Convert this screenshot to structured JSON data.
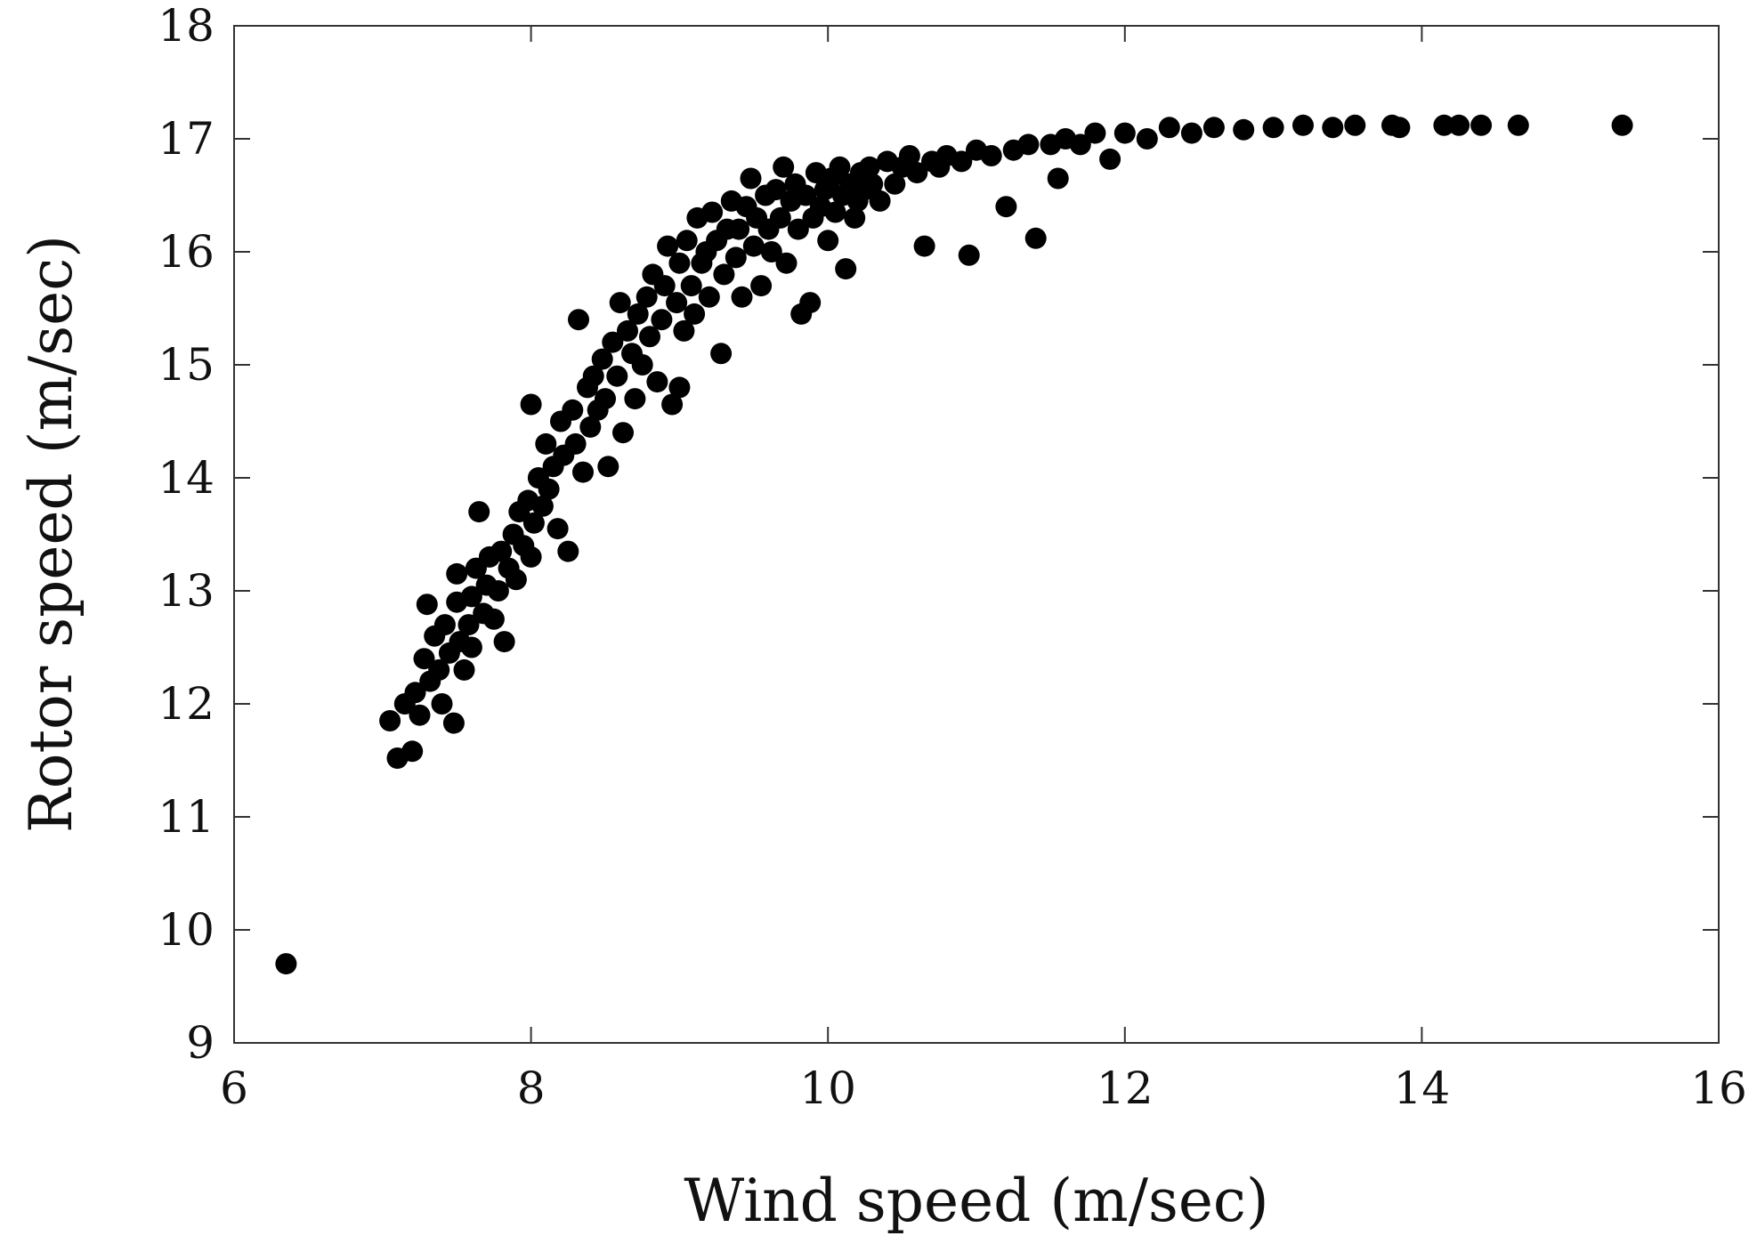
{
  "chart_data": {
    "type": "scatter",
    "title": "",
    "xlabel": "Wind speed (m/sec)",
    "ylabel": "Rotor speed (m/sec)",
    "xlim": [
      6,
      16
    ],
    "ylim": [
      9,
      18
    ],
    "xticks": [
      6,
      8,
      10,
      12,
      14,
      16
    ],
    "yticks": [
      9,
      10,
      11,
      12,
      13,
      14,
      15,
      16,
      17,
      18
    ],
    "grid": false,
    "legend": "none",
    "marker_color": "#000000",
    "series": [
      {
        "points": [
          [
            6.35,
            9.7
          ],
          [
            7.05,
            11.85
          ],
          [
            7.1,
            11.52
          ],
          [
            7.15,
            12.0
          ],
          [
            7.2,
            11.58
          ],
          [
            7.22,
            12.1
          ],
          [
            7.25,
            11.9
          ],
          [
            7.28,
            12.4
          ],
          [
            7.3,
            12.88
          ],
          [
            7.32,
            12.2
          ],
          [
            7.35,
            12.6
          ],
          [
            7.38,
            12.3
          ],
          [
            7.4,
            12.0
          ],
          [
            7.42,
            12.7
          ],
          [
            7.45,
            12.45
          ],
          [
            7.48,
            11.83
          ],
          [
            7.5,
            12.9
          ],
          [
            7.5,
            13.15
          ],
          [
            7.52,
            12.55
          ],
          [
            7.55,
            12.3
          ],
          [
            7.58,
            12.7
          ],
          [
            7.6,
            12.95
          ],
          [
            7.6,
            12.5
          ],
          [
            7.63,
            13.2
          ],
          [
            7.65,
            13.7
          ],
          [
            7.68,
            12.8
          ],
          [
            7.7,
            13.05
          ],
          [
            7.72,
            13.3
          ],
          [
            7.75,
            12.75
          ],
          [
            7.78,
            13.0
          ],
          [
            7.8,
            13.35
          ],
          [
            7.82,
            12.55
          ],
          [
            7.85,
            13.2
          ],
          [
            7.88,
            13.5
          ],
          [
            7.9,
            13.1
          ],
          [
            7.92,
            13.7
          ],
          [
            7.95,
            13.4
          ],
          [
            7.98,
            13.8
          ],
          [
            8.0,
            13.3
          ],
          [
            8.0,
            14.65
          ],
          [
            8.02,
            13.6
          ],
          [
            8.05,
            14.0
          ],
          [
            8.08,
            13.75
          ],
          [
            8.1,
            14.3
          ],
          [
            8.12,
            13.9
          ],
          [
            8.15,
            14.1
          ],
          [
            8.18,
            13.55
          ],
          [
            8.2,
            14.5
          ],
          [
            8.22,
            14.2
          ],
          [
            8.25,
            13.35
          ],
          [
            8.28,
            14.6
          ],
          [
            8.3,
            14.3
          ],
          [
            8.32,
            15.4
          ],
          [
            8.35,
            14.05
          ],
          [
            8.38,
            14.8
          ],
          [
            8.4,
            14.45
          ],
          [
            8.42,
            14.9
          ],
          [
            8.45,
            14.6
          ],
          [
            8.48,
            15.05
          ],
          [
            8.5,
            14.7
          ],
          [
            8.52,
            14.1
          ],
          [
            8.55,
            15.2
          ],
          [
            8.58,
            14.9
          ],
          [
            8.6,
            15.55
          ],
          [
            8.62,
            14.4
          ],
          [
            8.65,
            15.3
          ],
          [
            8.68,
            15.1
          ],
          [
            8.7,
            14.7
          ],
          [
            8.72,
            15.45
          ],
          [
            8.75,
            15.0
          ],
          [
            8.78,
            15.6
          ],
          [
            8.8,
            15.25
          ],
          [
            8.82,
            15.8
          ],
          [
            8.85,
            14.85
          ],
          [
            8.88,
            15.4
          ],
          [
            8.9,
            15.7
          ],
          [
            8.92,
            16.05
          ],
          [
            8.95,
            14.65
          ],
          [
            8.98,
            15.55
          ],
          [
            9.0,
            15.9
          ],
          [
            9.0,
            14.8
          ],
          [
            9.03,
            15.3
          ],
          [
            9.05,
            16.1
          ],
          [
            9.08,
            15.7
          ],
          [
            9.1,
            15.45
          ],
          [
            9.12,
            16.3
          ],
          [
            9.15,
            15.9
          ],
          [
            9.18,
            16.0
          ],
          [
            9.2,
            15.6
          ],
          [
            9.22,
            16.35
          ],
          [
            9.25,
            16.1
          ],
          [
            9.28,
            15.1
          ],
          [
            9.3,
            15.8
          ],
          [
            9.32,
            16.2
          ],
          [
            9.35,
            16.45
          ],
          [
            9.38,
            15.95
          ],
          [
            9.4,
            16.2
          ],
          [
            9.42,
            15.6
          ],
          [
            9.45,
            16.4
          ],
          [
            9.48,
            16.65
          ],
          [
            9.5,
            16.05
          ],
          [
            9.52,
            16.3
          ],
          [
            9.55,
            15.7
          ],
          [
            9.58,
            16.5
          ],
          [
            9.6,
            16.2
          ],
          [
            9.62,
            16.0
          ],
          [
            9.65,
            16.55
          ],
          [
            9.68,
            16.3
          ],
          [
            9.7,
            16.75
          ],
          [
            9.72,
            15.9
          ],
          [
            9.75,
            16.45
          ],
          [
            9.78,
            16.6
          ],
          [
            9.8,
            16.2
          ],
          [
            9.82,
            15.45
          ],
          [
            9.85,
            16.5
          ],
          [
            9.88,
            15.55
          ],
          [
            9.9,
            16.3
          ],
          [
            9.92,
            16.7
          ],
          [
            9.95,
            16.4
          ],
          [
            9.98,
            16.55
          ],
          [
            10.0,
            16.1
          ],
          [
            10.02,
            16.65
          ],
          [
            10.05,
            16.35
          ],
          [
            10.08,
            16.75
          ],
          [
            10.1,
            16.5
          ],
          [
            10.12,
            15.85
          ],
          [
            10.15,
            16.6
          ],
          [
            10.18,
            16.3
          ],
          [
            10.2,
            16.45
          ],
          [
            10.22,
            16.7
          ],
          [
            10.25,
            16.55
          ],
          [
            10.28,
            16.75
          ],
          [
            10.3,
            16.6
          ],
          [
            10.35,
            16.45
          ],
          [
            10.4,
            16.8
          ],
          [
            10.45,
            16.6
          ],
          [
            10.5,
            16.75
          ],
          [
            10.55,
            16.85
          ],
          [
            10.6,
            16.7
          ],
          [
            10.65,
            16.05
          ],
          [
            10.7,
            16.8
          ],
          [
            10.75,
            16.75
          ],
          [
            10.8,
            16.85
          ],
          [
            10.9,
            16.8
          ],
          [
            10.95,
            15.97
          ],
          [
            11.0,
            16.9
          ],
          [
            11.1,
            16.85
          ],
          [
            11.2,
            16.4
          ],
          [
            11.25,
            16.9
          ],
          [
            11.35,
            16.95
          ],
          [
            11.4,
            16.12
          ],
          [
            11.5,
            16.95
          ],
          [
            11.55,
            16.65
          ],
          [
            11.6,
            17.0
          ],
          [
            11.7,
            16.95
          ],
          [
            11.8,
            17.05
          ],
          [
            11.9,
            16.82
          ],
          [
            12.0,
            17.05
          ],
          [
            12.15,
            17.0
          ],
          [
            12.3,
            17.1
          ],
          [
            12.45,
            17.05
          ],
          [
            12.6,
            17.1
          ],
          [
            12.8,
            17.08
          ],
          [
            13.0,
            17.1
          ],
          [
            13.2,
            17.12
          ],
          [
            13.4,
            17.1
          ],
          [
            13.55,
            17.12
          ],
          [
            13.8,
            17.12
          ],
          [
            13.85,
            17.1
          ],
          [
            14.15,
            17.12
          ],
          [
            14.25,
            17.12
          ],
          [
            14.4,
            17.12
          ],
          [
            14.65,
            17.12
          ],
          [
            15.35,
            17.12
          ]
        ]
      }
    ]
  }
}
